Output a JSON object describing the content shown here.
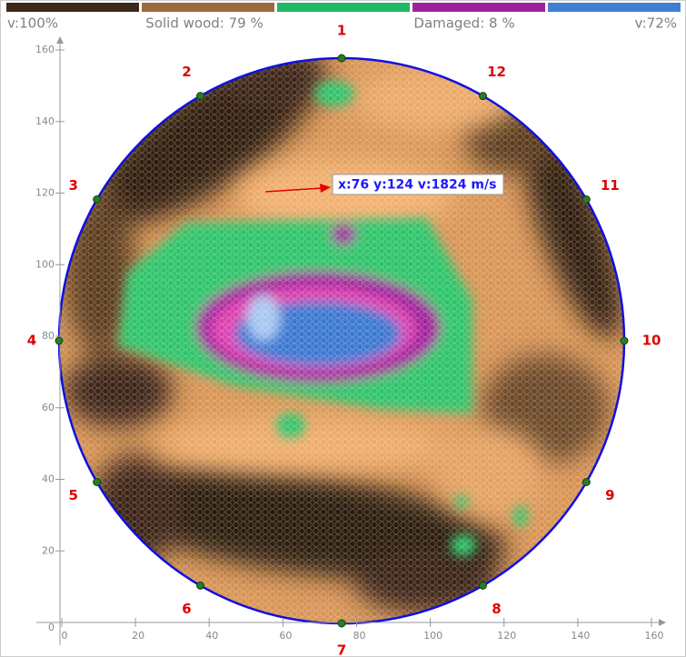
{
  "chart_data": {
    "type": "tomogram",
    "legend": {
      "colors": [
        "#3b2a1c",
        "#9c6a3e",
        "#1fb864",
        "#a0209c",
        "#3f7fd0"
      ],
      "labels": [
        "v:100%",
        "Solid wood: 79 %",
        "Damaged: 8 %",
        "v:72%"
      ]
    },
    "xlim": [
      0,
      160
    ],
    "ylim": [
      0,
      160
    ],
    "xticks": [
      0,
      20,
      40,
      60,
      80,
      100,
      120,
      140,
      160
    ],
    "yticks": [
      0,
      20,
      40,
      60,
      80,
      100,
      120,
      140,
      160
    ],
    "sensors": [
      "1",
      "2",
      "3",
      "4",
      "5",
      "6",
      "7",
      "8",
      "9",
      "10",
      "11",
      "12"
    ],
    "annotation": "x:76 y:124  v:1824 m/s"
  }
}
